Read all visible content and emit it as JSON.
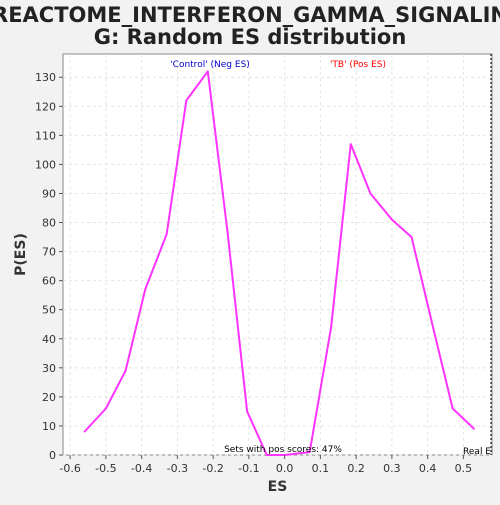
{
  "chart_data": {
    "type": "line",
    "title_line1": "REACTOME_INTERFERON_GAMMA_SIGNALIN",
    "title_line2": "G: Random ES distribution",
    "xlabel": "ES",
    "ylabel": "P(ES)",
    "xlim": [
      -0.62,
      0.58
    ],
    "ylim": [
      0,
      138
    ],
    "xticks": [
      -0.6,
      -0.5,
      -0.4,
      -0.3,
      -0.2,
      -0.1,
      0.0,
      0.1,
      0.2,
      0.3,
      0.4,
      0.5
    ],
    "xtick_labels": [
      "-0.6",
      "-0.5",
      "-0.4",
      "-0.3",
      "-0.2",
      "-0.1",
      "0.0",
      "0.1",
      "0.2",
      "0.3",
      "0.4",
      "0.5"
    ],
    "yticks": [
      0,
      10,
      20,
      30,
      40,
      50,
      60,
      70,
      80,
      90,
      100,
      110,
      120,
      130
    ],
    "ytick_labels": [
      "0",
      "10",
      "20",
      "30",
      "40",
      "50",
      "60",
      "70",
      "80",
      "90",
      "100",
      "110",
      "120",
      "130"
    ],
    "grid": true,
    "series": [
      {
        "color": "#ff33ff",
        "x": [
          -0.56,
          -0.5,
          -0.445,
          -0.39,
          -0.33,
          -0.275,
          -0.215,
          -0.16,
          -0.105,
          -0.05,
          0.0,
          0.07,
          0.13,
          0.185,
          0.24,
          0.3,
          0.355,
          0.415,
          0.47,
          0.53
        ],
        "y": [
          8,
          16,
          29,
          57,
          76,
          122,
          132,
          77,
          15,
          0,
          0,
          1,
          44,
          107,
          90,
          81,
          75,
          44,
          16,
          9
        ]
      }
    ],
    "annotations": {
      "neg_label": "'Control' (Neg ES)",
      "neg_color": "#0000cc",
      "pos_label": "'TB' (Pos ES)",
      "pos_color": "#ff0000",
      "footer": "Sets with pos scores: 47%",
      "real_es": "Real E",
      "real_es_x": 0.58
    }
  }
}
